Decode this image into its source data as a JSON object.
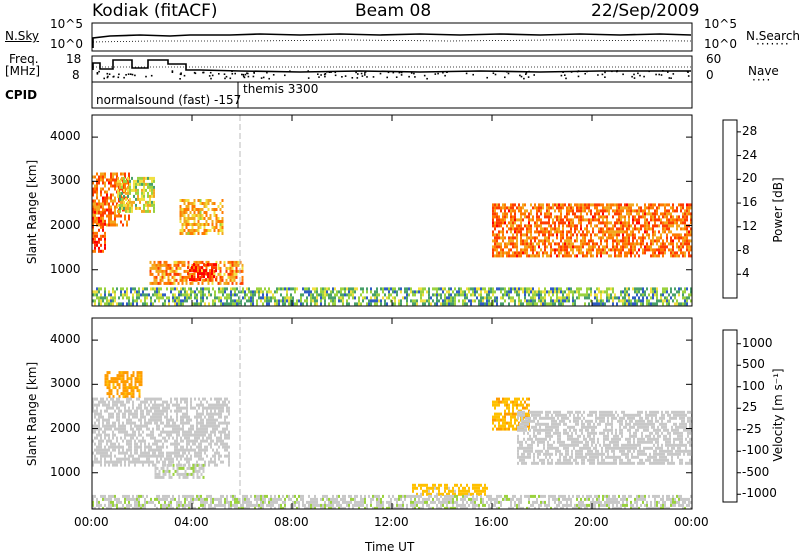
{
  "header": {
    "station": "Kodiak (fitACF)",
    "beam": "Beam 08",
    "date": "22/Sep/2009"
  },
  "left_labels": {
    "nsky": "N.Sky",
    "freq_line1": "Freq.",
    "freq_line2": "[MHz]",
    "cpid": "CPID"
  },
  "right_labels": {
    "nsearch": "N.Search",
    "nave": "Nave"
  },
  "ticks": {
    "noise_top_left": "10^5",
    "noise_bottom_left": "10^0",
    "noise_top_right": "10^5",
    "noise_bottom_right": "10^0",
    "freq_top": "18",
    "freq_bottom": "8",
    "nave_top": "60",
    "nave_bottom": "0"
  },
  "cpid_labels": {
    "first": "normalsound (fast) -157",
    "second": "themis 3300"
  },
  "colors": {
    "power": [
      "#0000ff",
      "#2e5bc4",
      "#48a06a",
      "#9ad23e",
      "#f1e040",
      "#f3a81f",
      "#ff7a00",
      "#ff3d00",
      "#ff0000"
    ],
    "velocity": [
      "#ff0000",
      "#ff6a00",
      "#ff9c00",
      "#ffc000",
      "#c8c8c8",
      "#9ad23e",
      "#58b040",
      "#2e8c50",
      "#2040c0"
    ]
  },
  "chart_data": [
    {
      "type": "heatmap",
      "title": "",
      "xlabel": "",
      "ylabel": "Slant Range [km]",
      "xlim": [
        0,
        24
      ],
      "ylim": [
        180,
        4500
      ],
      "yticks": [
        1000,
        2000,
        3000,
        4000
      ],
      "xtick_labels": [
        "00:00",
        "04:00",
        "08:00",
        "12:00",
        "16:00",
        "20:00",
        "00:00"
      ],
      "colorbar": {
        "label": "Power [dB]",
        "range": [
          0,
          30
        ],
        "ticks": [
          4,
          8,
          12,
          16,
          20,
          24,
          28
        ]
      },
      "regions": [
        {
          "t": [
            0.0,
            1.5
          ],
          "range_km": [
            2000,
            3200
          ],
          "power_db": 22
        },
        {
          "t": [
            0.0,
            0.5
          ],
          "range_km": [
            1400,
            2400
          ],
          "power_db": 24
        },
        {
          "t": [
            1.0,
            2.5
          ],
          "range_km": [
            2300,
            3100
          ],
          "power_db": 14
        },
        {
          "t": [
            3.5,
            5.2
          ],
          "range_km": [
            1800,
            2600
          ],
          "power_db": 18
        },
        {
          "t": [
            2.3,
            6.0
          ],
          "range_km": [
            700,
            1200
          ],
          "power_db": 20
        },
        {
          "t": [
            3.8,
            5.0
          ],
          "range_km": [
            750,
            1150
          ],
          "power_db": 28
        },
        {
          "t": [
            16.0,
            24.0
          ],
          "range_km": [
            1300,
            2500
          ],
          "power_db": 22
        },
        {
          "t": [
            0.0,
            24.0
          ],
          "range_km": [
            200,
            600
          ],
          "power_db": 10
        }
      ]
    },
    {
      "type": "heatmap",
      "title": "",
      "xlabel": "Time UT",
      "ylabel": "Slant Range [km]",
      "xlim": [
        0,
        24
      ],
      "ylim": [
        180,
        4500
      ],
      "yticks": [
        1000,
        2000,
        3000,
        4000
      ],
      "xtick_labels": [
        "00:00",
        "04:00",
        "08:00",
        "12:00",
        "16:00",
        "20:00",
        "00:00"
      ],
      "colorbar": {
        "label": "Velocity [m s^-1]",
        "range": [
          -1000,
          1000
        ],
        "tick_labels": [
          "1000",
          "500",
          "100",
          "25",
          "-25",
          "-100",
          "-500",
          "-1000"
        ]
      },
      "regions": [
        {
          "t": [
            0.5,
            2.0
          ],
          "range_km": [
            2700,
            3300
          ],
          "velocity": -400
        },
        {
          "t": [
            0.0,
            5.5
          ],
          "range_km": [
            1200,
            2700
          ],
          "velocity": 0
        },
        {
          "t": [
            2.5,
            4.5
          ],
          "range_km": [
            900,
            1200
          ],
          "velocity": 60
        },
        {
          "t": [
            12.8,
            15.8
          ],
          "range_km": [
            500,
            750
          ],
          "velocity": -200
        },
        {
          "t": [
            16.0,
            17.5
          ],
          "range_km": [
            2000,
            2700
          ],
          "velocity": -300
        },
        {
          "t": [
            17.0,
            24.0
          ],
          "range_km": [
            1200,
            2400
          ],
          "velocity": 0
        },
        {
          "t": [
            0.0,
            24.0
          ],
          "range_km": [
            200,
            500
          ],
          "velocity": 50
        }
      ]
    }
  ]
}
